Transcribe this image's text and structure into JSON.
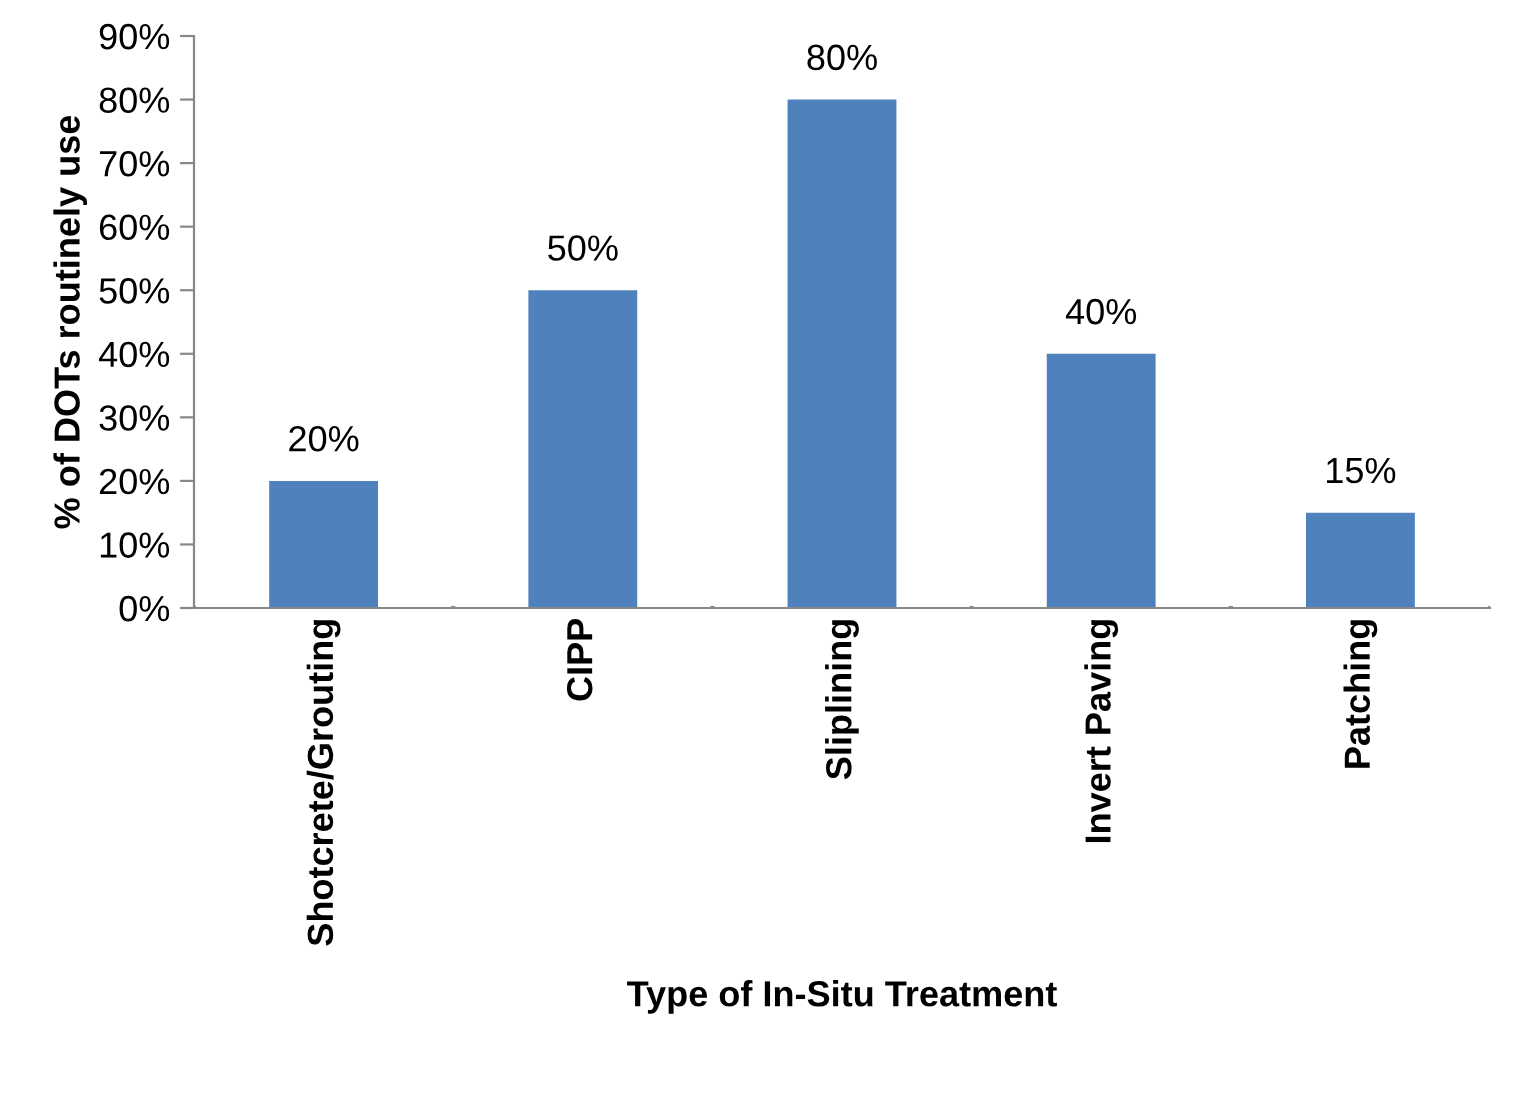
{
  "chart_data": {
    "type": "bar",
    "xlabel": "Type of In-Situ Treatment",
    "ylabel": "% of DOTs routinely use",
    "categories": [
      "Shotcrete/Grouting",
      "CIPP",
      "Sliplining",
      "Invert Paving",
      "Patching"
    ],
    "values": [
      20,
      50,
      80,
      40,
      15
    ],
    "color": "#4f81bd",
    "value_labels": [
      "20%",
      "50%",
      "80%",
      "40%",
      "15%"
    ],
    "ylim": [
      0,
      90
    ],
    "yticks": [
      {
        "value": 0,
        "label": "0%"
      },
      {
        "value": 10,
        "label": "10%"
      },
      {
        "value": 20,
        "label": "20%"
      },
      {
        "value": 30,
        "label": "30%"
      },
      {
        "value": 40,
        "label": "40%"
      },
      {
        "value": 50,
        "label": "50%"
      },
      {
        "value": 60,
        "label": "60%"
      },
      {
        "value": 70,
        "label": "70%"
      },
      {
        "value": 80,
        "label": "80%"
      },
      {
        "value": 90,
        "label": "90%"
      }
    ],
    "grid": false,
    "legend": false
  }
}
